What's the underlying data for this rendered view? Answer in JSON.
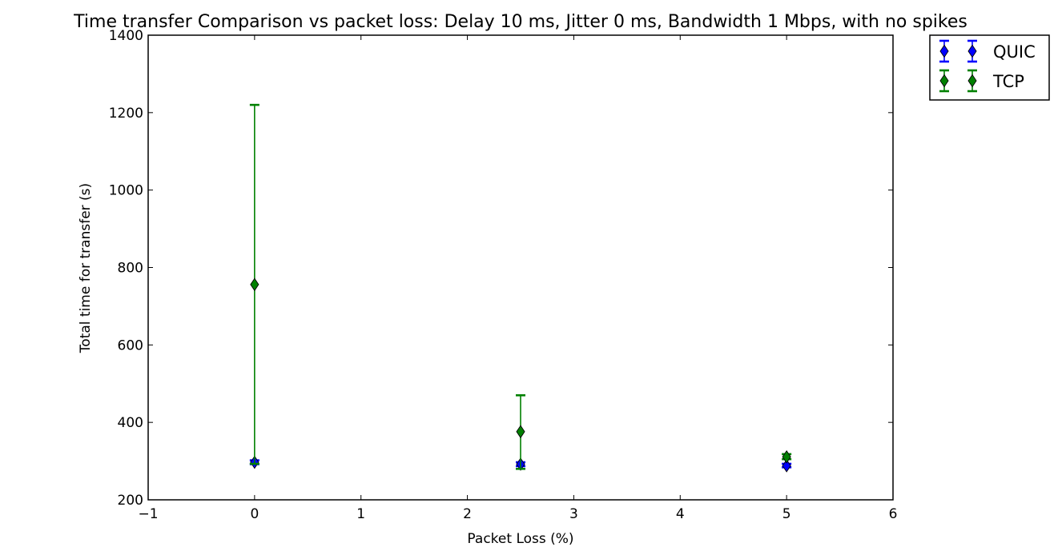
{
  "chart_data": {
    "type": "scatter",
    "title": "Time transfer Comparison vs packet loss: Delay 10 ms, Jitter 0 ms, Bandwidth 1 Mbps, with no spikes",
    "xlabel": "Packet Loss (%)",
    "ylabel": "Total time for transfer (s)",
    "xlim": [
      -1,
      6
    ],
    "ylim": [
      200,
      1400
    ],
    "xticks": [
      "−1",
      "0",
      "1",
      "2",
      "3",
      "4",
      "5",
      "6"
    ],
    "yticks": [
      "200",
      "400",
      "600",
      "800",
      "1000",
      "1200",
      "1400"
    ],
    "grid": false,
    "legend_position": "outside-top-right",
    "series": [
      {
        "name": "QUIC",
        "color": "#0000ff",
        "marker": "diamond",
        "points": [
          {
            "x": 0,
            "y": 297,
            "err_low": 292,
            "err_high": 302
          },
          {
            "x": 2.5,
            "y": 292,
            "err_low": 287,
            "err_high": 297
          },
          {
            "x": 5,
            "y": 288,
            "err_low": 284,
            "err_high": 293
          }
        ]
      },
      {
        "name": "TCP",
        "color": "#008000",
        "marker": "diamond",
        "points": [
          {
            "x": 0,
            "y": 756,
            "err_low": 293,
            "err_high": 1220
          },
          {
            "x": 2.5,
            "y": 376,
            "err_low": 280,
            "err_high": 470
          },
          {
            "x": 5,
            "y": 311,
            "err_low": 305,
            "err_high": 318
          }
        ]
      }
    ]
  }
}
